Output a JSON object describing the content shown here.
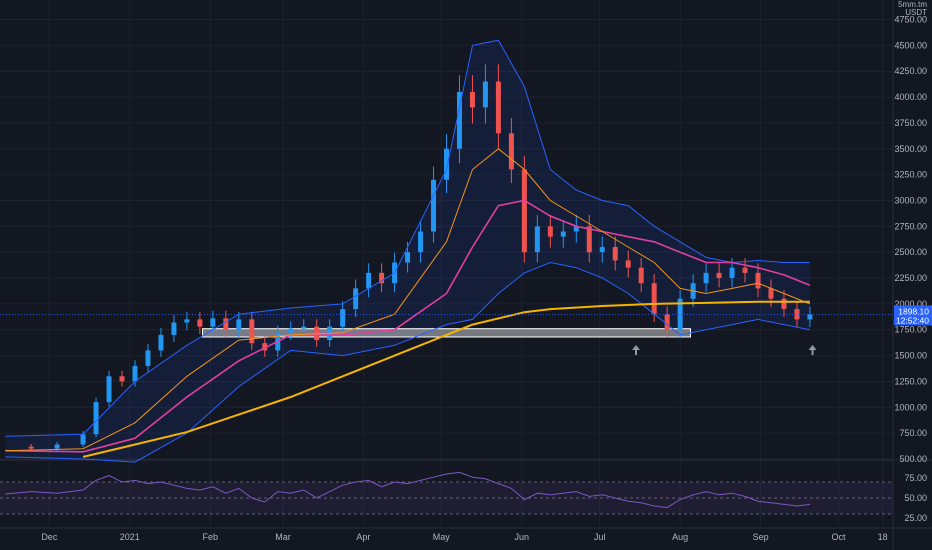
{
  "chart_data": {
    "type": "line",
    "chart_kind": "candlestick price chart with moving averages, Bollinger Bands and RSI sub-panel",
    "price_unit": {
      "line1": "5mm.tm",
      "line2": "USDT"
    },
    "price_axis": {
      "ylim": [
        500,
        4900
      ],
      "ticks": [
        "500.00",
        "750.00",
        "1000.00",
        "1250.00",
        "1500.00",
        "1750.00",
        "2000.00",
        "2250.00",
        "2500.00",
        "2750.00",
        "3000.00",
        "3250.00",
        "3500.00",
        "3750.00",
        "4000.00",
        "4250.00",
        "4500.00",
        "4750.00"
      ]
    },
    "rsi_axis": {
      "ylim": [
        20,
        90
      ],
      "ticks": [
        "25.00",
        "50.00",
        "75.00"
      ],
      "band": [
        30,
        70
      ]
    },
    "time_axis": {
      "labels": [
        "Dec",
        "2021",
        "Feb",
        "Mar",
        "Apr",
        "May",
        "Jun",
        "Jul",
        "Aug",
        "Sep",
        "Oct",
        "18"
      ],
      "label_days": [
        -13,
        18,
        49,
        77,
        108,
        138,
        169,
        199,
        230,
        261,
        291,
        308
      ]
    },
    "last_price": {
      "value": "1898.10",
      "countdown": "12:52:40",
      "value_num": 1898.1
    },
    "support_zone": {
      "from_day": 46,
      "to_day": 234,
      "low": 1680,
      "high": 1760
    },
    "support_touches": [
      {
        "day": 213,
        "value": 1660
      },
      {
        "day": 281,
        "value": 1660
      }
    ],
    "series": [
      {
        "name": "Close",
        "key": "close",
        "x": [
          -30,
          -20,
          -10,
          0,
          5,
          10,
          15,
          20,
          25,
          30,
          35,
          40,
          45,
          50,
          55,
          60,
          65,
          70,
          75,
          80,
          85,
          90,
          95,
          100,
          105,
          110,
          115,
          120,
          125,
          130,
          135,
          140,
          145,
          150,
          155,
          160,
          165,
          170,
          175,
          180,
          185,
          190,
          195,
          200,
          205,
          210,
          215,
          220,
          225,
          230,
          235,
          240,
          245,
          250,
          255,
          260,
          265,
          270,
          275,
          280
        ],
        "y": [
          620,
          600,
          640,
          740,
          1050,
          1300,
          1250,
          1400,
          1550,
          1700,
          1820,
          1850,
          1780,
          1860,
          1750,
          1850,
          1620,
          1550,
          1720,
          1760,
          1780,
          1650,
          1780,
          1950,
          2150,
          2300,
          2200,
          2400,
          2500,
          2700,
          3200,
          3500,
          4050,
          3900,
          4150,
          3650,
          3300,
          2500,
          2750,
          2650,
          2700,
          2750,
          2500,
          2550,
          2420,
          2350,
          2200,
          1900,
          1750,
          2050,
          2200,
          2300,
          2250,
          2350,
          2300,
          2150,
          2050,
          1950,
          1850,
          1898
        ]
      },
      {
        "name": "SMA fast",
        "key": "ma_fast",
        "color": "#f7931a",
        "x": [
          -30,
          0,
          20,
          40,
          60,
          80,
          100,
          120,
          140,
          150,
          160,
          170,
          180,
          190,
          200,
          210,
          220,
          230,
          240,
          250,
          260,
          270,
          280
        ],
        "y": [
          580,
          600,
          850,
          1300,
          1650,
          1700,
          1720,
          1900,
          2600,
          3300,
          3500,
          3300,
          3000,
          2850,
          2700,
          2550,
          2400,
          2150,
          2100,
          2150,
          2200,
          2100,
          2000
        ]
      },
      {
        "name": "SMA mid",
        "key": "ma_mid",
        "color": "#e040a0",
        "x": [
          -30,
          0,
          20,
          40,
          60,
          80,
          100,
          120,
          140,
          150,
          160,
          170,
          180,
          190,
          200,
          210,
          220,
          230,
          240,
          250,
          260,
          270,
          280
        ],
        "y": [
          580,
          570,
          700,
          1100,
          1450,
          1700,
          1700,
          1750,
          2100,
          2550,
          2950,
          3000,
          2850,
          2750,
          2700,
          2650,
          2600,
          2500,
          2400,
          2400,
          2350,
          2280,
          2180
        ]
      },
      {
        "name": "SMA slow",
        "key": "ma_slow",
        "color": "#f5b400",
        "x": [
          0,
          40,
          80,
          120,
          150,
          170,
          180,
          200,
          220,
          240,
          260,
          280
        ],
        "y": [
          520,
          760,
          1100,
          1500,
          1800,
          1920,
          1950,
          1980,
          2000,
          2010,
          2020,
          2020
        ]
      },
      {
        "name": "BB upper",
        "key": "bb_upper",
        "color": "#2962ff",
        "x": [
          -30,
          0,
          20,
          40,
          60,
          80,
          100,
          120,
          140,
          150,
          160,
          170,
          180,
          190,
          200,
          210,
          220,
          230,
          240,
          250,
          260,
          270,
          280
        ],
        "y": [
          720,
          740,
          1250,
          1600,
          1900,
          1960,
          2000,
          2300,
          3300,
          4500,
          4550,
          4100,
          3300,
          3100,
          3000,
          2950,
          2750,
          2600,
          2450,
          2400,
          2420,
          2400,
          2400
        ]
      },
      {
        "name": "BB lower",
        "key": "bb_lower",
        "color": "#2962ff",
        "x": [
          -30,
          0,
          20,
          40,
          60,
          80,
          100,
          120,
          140,
          150,
          160,
          170,
          180,
          190,
          200,
          210,
          220,
          230,
          240,
          250,
          260,
          270,
          280
        ],
        "y": [
          520,
          500,
          470,
          750,
          1200,
          1550,
          1500,
          1600,
          1800,
          1850,
          2100,
          2300,
          2400,
          2350,
          2250,
          2100,
          1900,
          1700,
          1750,
          1800,
          1850,
          1800,
          1750
        ]
      },
      {
        "name": "RSI",
        "key": "rsi",
        "color": "#7e57c2",
        "x": [
          -30,
          -20,
          -10,
          0,
          5,
          10,
          15,
          20,
          25,
          30,
          35,
          40,
          45,
          50,
          55,
          60,
          65,
          70,
          75,
          80,
          85,
          90,
          95,
          100,
          105,
          110,
          115,
          120,
          125,
          130,
          135,
          140,
          145,
          150,
          155,
          160,
          165,
          170,
          175,
          180,
          185,
          190,
          195,
          200,
          205,
          210,
          215,
          220,
          225,
          230,
          235,
          240,
          245,
          250,
          255,
          260,
          265,
          270,
          275,
          280
        ],
        "y": [
          55,
          58,
          56,
          60,
          72,
          78,
          70,
          72,
          68,
          70,
          66,
          62,
          60,
          64,
          56,
          62,
          50,
          45,
          58,
          56,
          60,
          50,
          58,
          66,
          70,
          72,
          64,
          70,
          68,
          72,
          76,
          80,
          82,
          76,
          74,
          68,
          62,
          48,
          56,
          54,
          56,
          58,
          52,
          54,
          50,
          46,
          44,
          40,
          38,
          48,
          54,
          58,
          54,
          56,
          52,
          46,
          44,
          42,
          40,
          42
        ]
      }
    ]
  }
}
